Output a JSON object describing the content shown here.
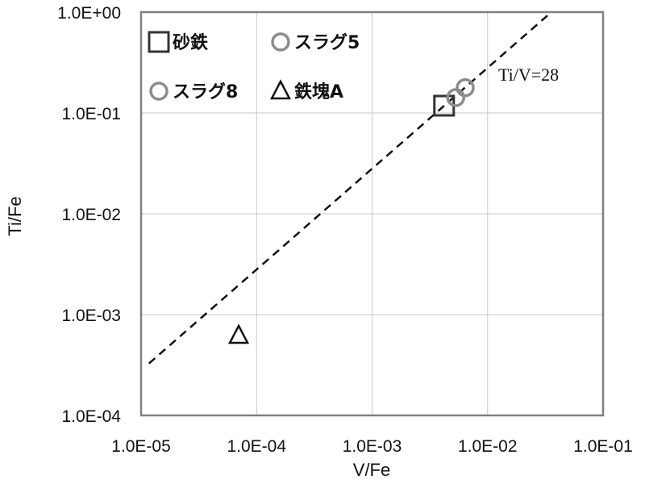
{
  "chart_data": {
    "type": "scatter",
    "xlabel": "V/Fe",
    "ylabel": "Ti/Fe",
    "xscale": "log",
    "yscale": "log",
    "xlim": [
      1e-05,
      0.1
    ],
    "ylim": [
      0.0001,
      1
    ],
    "x_tick_labels": [
      "1.0E-05",
      "1.0E-04",
      "1.0E-03",
      "1.0E-02",
      "1.0E-01"
    ],
    "y_tick_labels": [
      "1.0E-04",
      "1.0E-03",
      "1.0E-02",
      "1.0E-01",
      "1.0E+00"
    ],
    "grid": true,
    "legend_position": "top-left",
    "series": [
      {
        "name": "砂鉄",
        "marker": "square",
        "color": "#333333",
        "points": [
          [
            0.0042,
            0.118
          ]
        ]
      },
      {
        "name": "スラグ5",
        "marker": "circle",
        "color": "#8c8c8c",
        "points": [
          [
            0.0053,
            0.142
          ]
        ]
      },
      {
        "name": "スラグ8",
        "marker": "circle",
        "color": "#8c8c8c",
        "points": [
          [
            0.0064,
            0.178
          ]
        ]
      },
      {
        "name": "鉄塊A",
        "marker": "triangle",
        "color": "#111111",
        "points": [
          [
            7e-05,
            0.00062
          ]
        ]
      }
    ],
    "reference_line": {
      "label": "Ti/V=28",
      "slope_ratio": 28,
      "style": "dashed",
      "x_range": [
        1.17e-05,
        0.0357
      ]
    }
  }
}
